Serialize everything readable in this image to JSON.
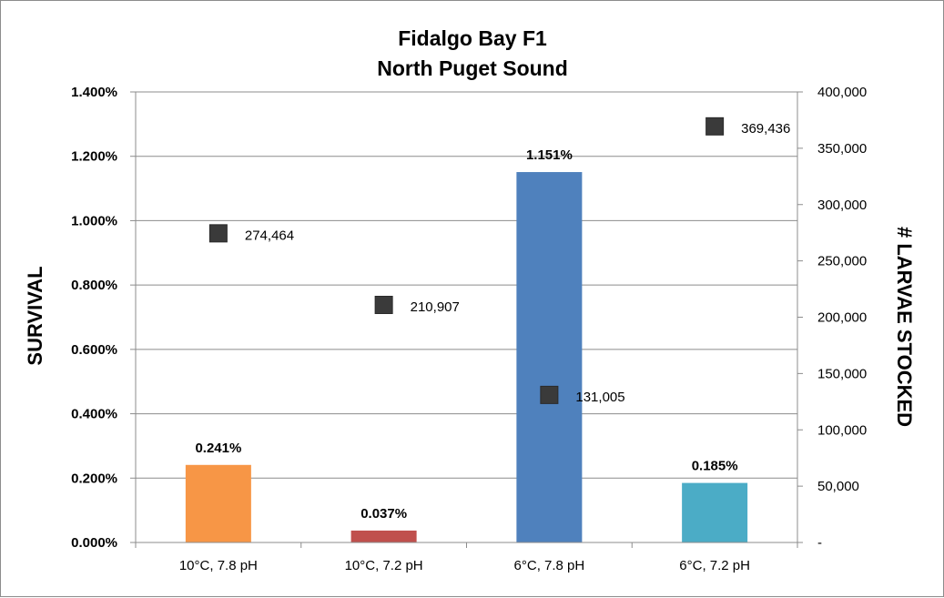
{
  "chart_data": {
    "type": "bar",
    "title_line1": "Fidalgo Bay  F1",
    "title_line2": "North Puget Sound",
    "categories": [
      "10°C, 7.8 pH",
      "10°C, 7.2 pH",
      "6°C, 7.8 pH",
      "6°C, 7.2 pH"
    ],
    "ylabel": "SURVIVAL",
    "y2label": "# LARVAE STOCKED",
    "ylim": [
      0,
      1.4
    ],
    "y_ticks": [
      "0.000%",
      "0.200%",
      "0.400%",
      "0.600%",
      "0.800%",
      "1.000%",
      "1.200%",
      "1.400%"
    ],
    "y2lim": [
      0,
      400000
    ],
    "y2_ticks": [
      "-",
      "50,000",
      "100,000",
      "150,000",
      "200,000",
      "250,000",
      "300,000",
      "350,000",
      "400,000"
    ],
    "grid": true,
    "series": [
      {
        "name": "",
        "kind": "bar",
        "axis": "left",
        "values": [
          0.241,
          0.037,
          1.151,
          0.185
        ],
        "labels": [
          "0.241%",
          "0.037%",
          "1.151%",
          "0.185%"
        ],
        "colors": [
          "#F79646",
          "#C0504D",
          "#4F81BD",
          "#4BACC6"
        ]
      },
      {
        "name": "",
        "kind": "scatter",
        "axis": "right",
        "marker": "square",
        "color": "#3a3a3a",
        "values": [
          274464,
          210907,
          131005,
          369436
        ],
        "labels": [
          "274,464",
          "210,907",
          "131,005",
          "369,436"
        ]
      }
    ]
  }
}
